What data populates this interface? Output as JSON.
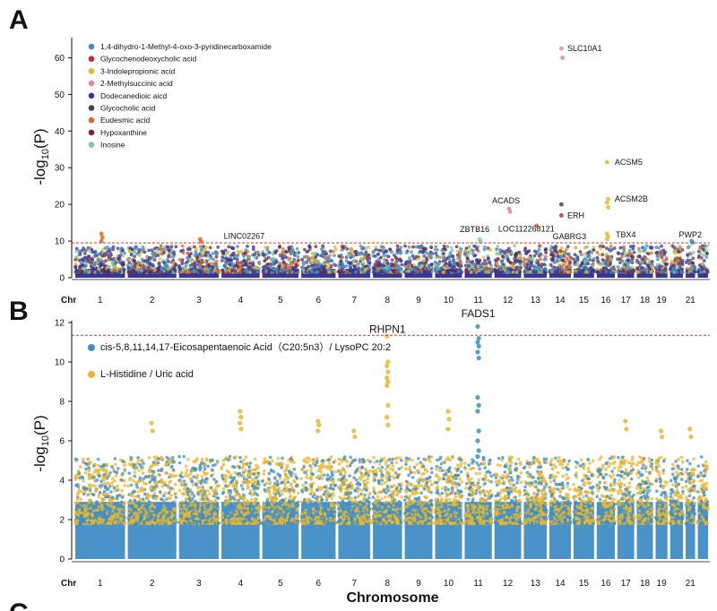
{
  "figure": {
    "panel_a_letter": "A",
    "panel_b_letter": "B",
    "panel_c_letter": "C"
  },
  "chart_data": [
    {
      "type": "scatter",
      "panel": "A",
      "ylabel": "-log10(P)",
      "xlabel": "Chr",
      "ylim": [
        0,
        65
      ],
      "y_ticks": [
        0,
        10,
        20,
        30,
        40,
        50,
        60
      ],
      "chromosome_ticks": [
        "1",
        "2",
        "3",
        "4",
        "5",
        "6",
        "7",
        "8",
        "9",
        "10",
        "11",
        "12",
        "13",
        "14",
        "15",
        "16",
        "17",
        "18",
        "19",
        "21"
      ],
      "threshold": 9.5,
      "threshold_color": "#d9322b",
      "grid": false,
      "legend_position": "top-left",
      "series": [
        {
          "name": "1,4-dihydro-1-Methyl-4-oxo-3-pyridinecarboxamide",
          "color": "#3e8ec4"
        },
        {
          "name": "Glycochenodeoxycholic acid",
          "color": "#c8253f"
        },
        {
          "name": "3-Indolepropionic acid",
          "color": "#e8b72e"
        },
        {
          "name": "2-Methylsuccinic acid",
          "color": "#d98a95"
        },
        {
          "name": "Dodecanedioic aicd",
          "color": "#3a3591"
        },
        {
          "name": "Glycocholic acid",
          "color": "#444444"
        },
        {
          "name": "Eudesmic acid",
          "color": "#d9672b"
        },
        {
          "name": "Hypoxanthine",
          "color": "#7a2531"
        },
        {
          "name": "Inosine",
          "color": "#7fc9a4"
        }
      ],
      "annotations": [
        {
          "label": "SLC10A1",
          "chr": 14,
          "y": 62.5
        },
        {
          "label": "ACSM5",
          "chr": 16,
          "y": 31.5
        },
        {
          "label": "ACSM2B",
          "chr": 16,
          "y": 21.5
        },
        {
          "label": "ACADS",
          "chr": 12,
          "y": 18.8
        },
        {
          "label": "ERH",
          "chr": 14,
          "y": 17.0
        },
        {
          "label": "LOC112268121",
          "chr": 13,
          "y": 14.5
        },
        {
          "label": "ZBTB16",
          "chr": 11,
          "y": 10.5
        },
        {
          "label": "LINC02267",
          "chr": 4,
          "y": 9.2
        },
        {
          "label": "GABRG3",
          "chr": 15,
          "y": 9.0
        },
        {
          "label": "TBX4",
          "chr": 17,
          "y": 9.5
        },
        {
          "label": "PWP2",
          "chr": 21,
          "y": 9.5
        }
      ],
      "peaks": [
        {
          "chr": 14,
          "values": [
            62.5,
            60.0
          ],
          "series": "2-Methylsuccinic acid"
        },
        {
          "chr": 16,
          "values": [
            31.5,
            21.5,
            20.5,
            19.2,
            12.0,
            11.2,
            10.5
          ],
          "series": "3-Indolepropionic acid"
        },
        {
          "chr": 12,
          "values": [
            18.8,
            18.0
          ],
          "series": "2-Methylsuccinic acid"
        },
        {
          "chr": 14,
          "values": [
            20.0
          ],
          "series": "Glycocholic acid"
        },
        {
          "chr": 14,
          "values": [
            17.0
          ],
          "series": "Glycochenodeoxycholic acid"
        },
        {
          "chr": 13,
          "values": [
            14.2
          ],
          "series": "Eudesmic acid"
        },
        {
          "chr": 11,
          "values": [
            10.5,
            9.8
          ],
          "series": "Inosine"
        },
        {
          "chr": 1,
          "values": [
            12.0,
            11.0,
            10.0
          ],
          "series": "Eudesmic acid"
        },
        {
          "chr": 3,
          "values": [
            10.5,
            9.8
          ],
          "series": "Eudesmic acid"
        },
        {
          "chr": 21,
          "values": [
            10.0,
            9.6
          ],
          "series": "1,4-dihydro-1-Methyl-4-oxo-3-pyridinecarboxamide"
        }
      ]
    },
    {
      "type": "scatter",
      "panel": "B",
      "ylabel": "-log10(P)",
      "xlabel": "Chromosome",
      "ylim": [
        0,
        12
      ],
      "y_ticks": [
        0,
        2,
        4,
        6,
        8,
        10,
        12
      ],
      "chromosome_ticks": [
        "1",
        "2",
        "3",
        "4",
        "5",
        "6",
        "7",
        "8",
        "9",
        "10",
        "11",
        "12",
        "13",
        "14",
        "15",
        "16",
        "17",
        "18",
        "19",
        "21"
      ],
      "chr_label": "Chr",
      "threshold": 11.35,
      "threshold_color": "#d9322b",
      "grid": false,
      "legend_position": "top-left",
      "series": [
        {
          "name": "cis-5,8,11,14,17-Eicosapentaenoic Acid（C20:5n3）/ LysoPC 20:2",
          "color": "#3e8ec4"
        },
        {
          "name": "L-Histidine / Uric acid",
          "color": "#e8b72e"
        }
      ],
      "annotations": [
        {
          "label": "FADS1",
          "chr": 11,
          "y": 11.9
        },
        {
          "label": "RHPN1",
          "chr": 8,
          "y": 11.3
        }
      ],
      "peaks": [
        {
          "chr": 11,
          "values": [
            11.8,
            11.2,
            11.0,
            10.8,
            10.5,
            10.2,
            8.2,
            7.8,
            7.5,
            6.5,
            6.0,
            5.5,
            5.2
          ],
          "series": "cis-5,8,11,14,17-Eicosapentaenoic Acid（C20:5n3）/ LysoPC 20:2"
        },
        {
          "chr": 8,
          "values": [
            11.3,
            10.0,
            9.8,
            9.5,
            9.2,
            9.0,
            8.8,
            7.8,
            7.2,
            6.8
          ],
          "series": "L-Histidine / Uric acid"
        },
        {
          "chr": 4,
          "values": [
            7.5,
            7.2,
            6.9,
            6.6
          ],
          "series": "L-Histidine / Uric acid"
        },
        {
          "chr": 10,
          "values": [
            7.5,
            7.1,
            6.6
          ],
          "series": "L-Histidine / Uric acid"
        },
        {
          "chr": 2,
          "values": [
            6.9,
            6.5
          ],
          "series": "L-Histidine / Uric acid"
        },
        {
          "chr": 6,
          "values": [
            7.0,
            6.8,
            6.5
          ],
          "series": "L-Histidine / Uric acid"
        },
        {
          "chr": 17,
          "values": [
            7.0,
            6.6
          ],
          "series": "L-Histidine / Uric acid"
        },
        {
          "chr": 21,
          "values": [
            6.6,
            6.2
          ],
          "series": "L-Histidine / Uric acid"
        },
        {
          "chr": 19,
          "values": [
            6.5,
            6.2
          ],
          "series": "L-Histidine / Uric acid"
        },
        {
          "chr": 7,
          "values": [
            6.5,
            6.2
          ],
          "series": "L-Histidine / Uric acid"
        }
      ]
    }
  ]
}
